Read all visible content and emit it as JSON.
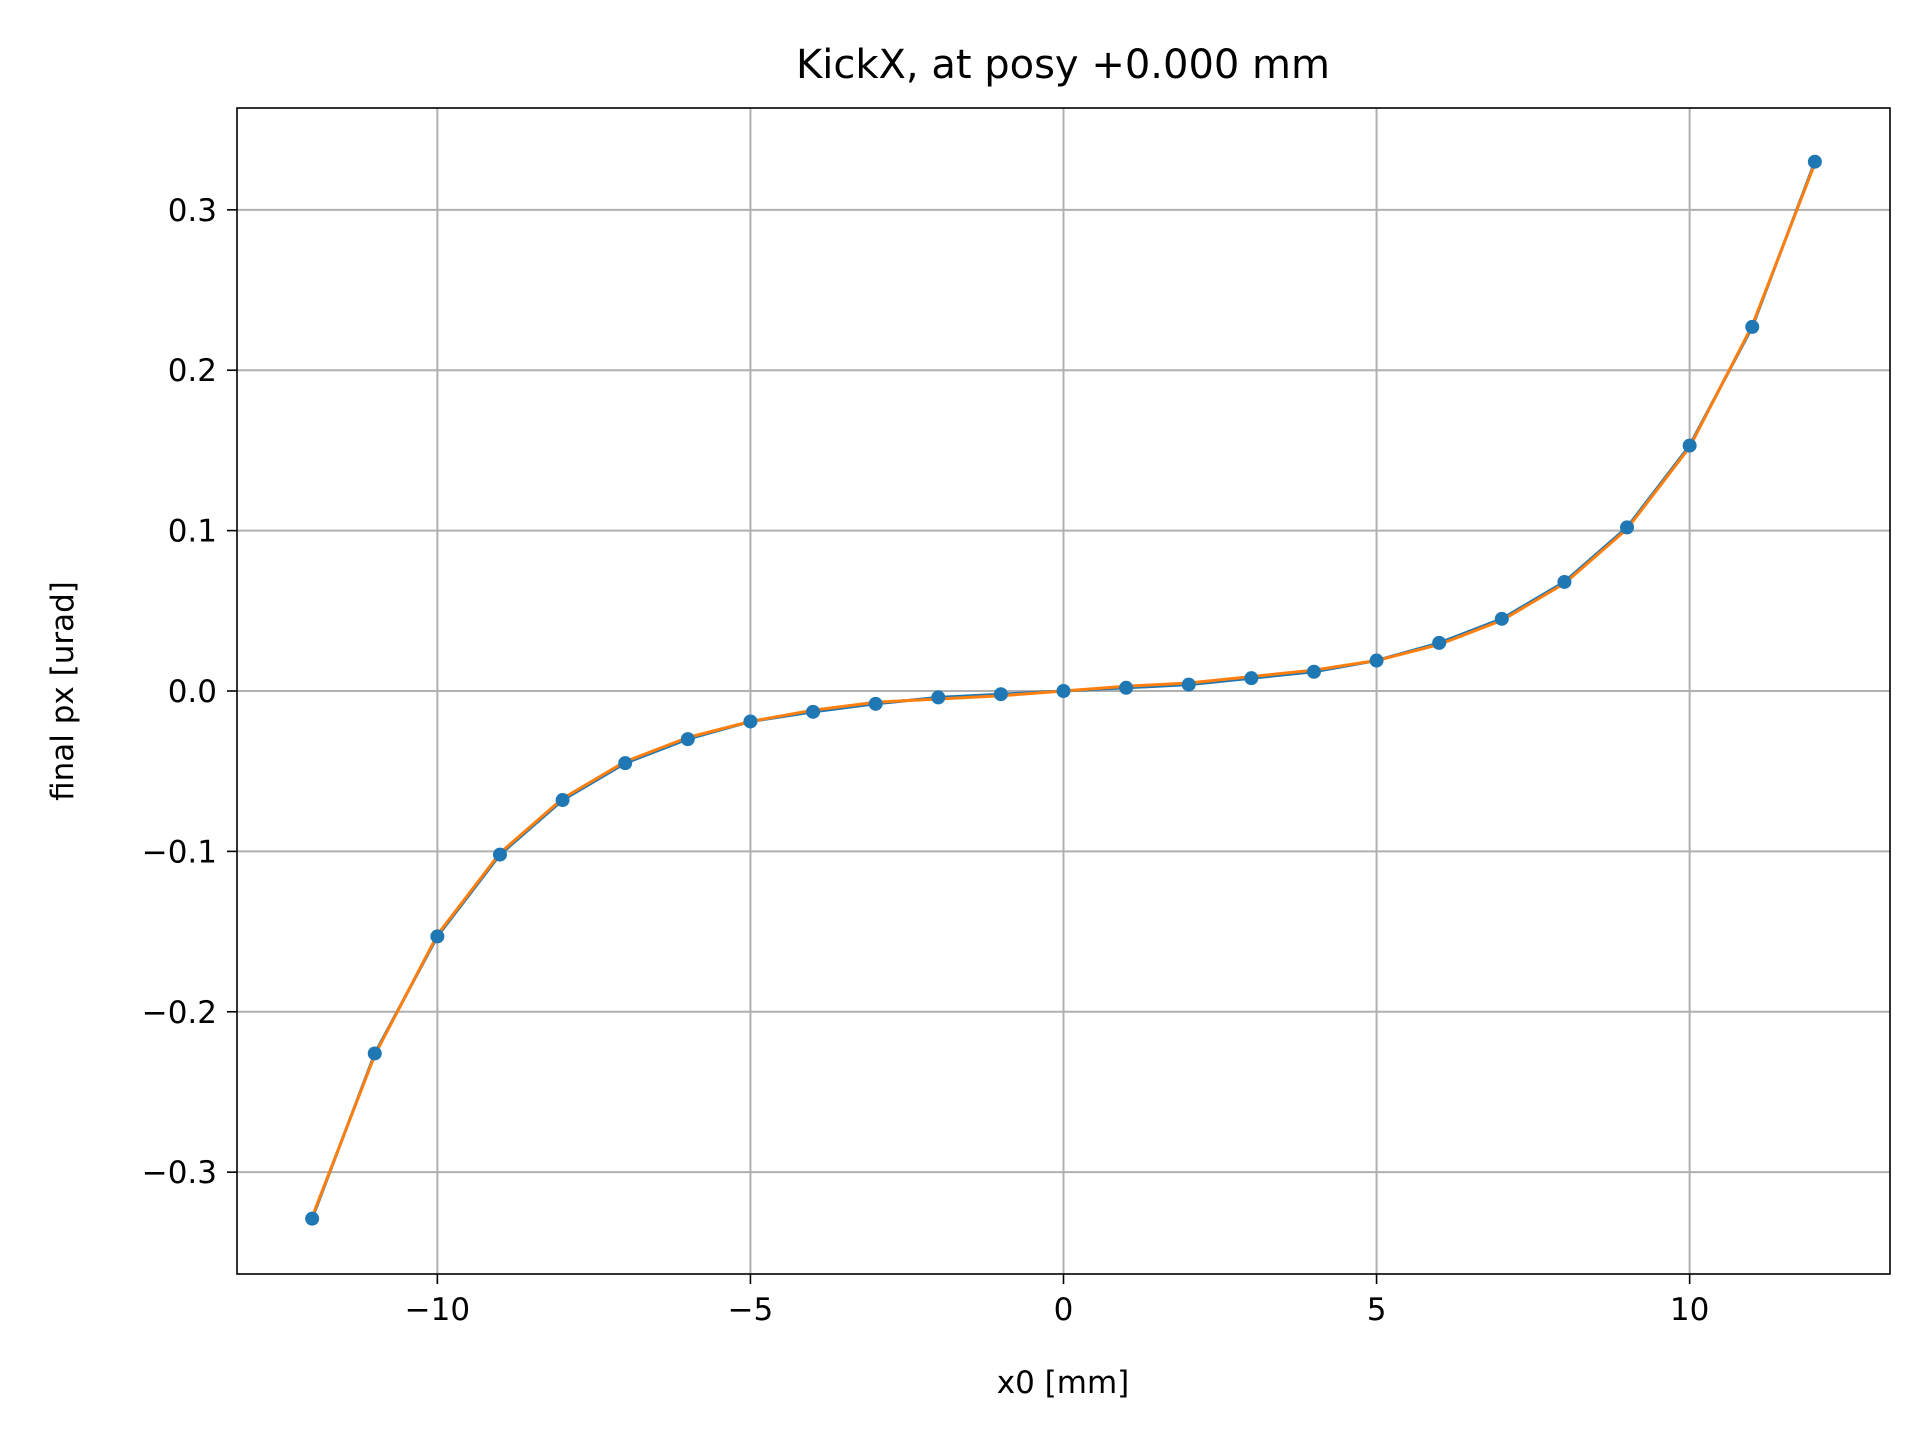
{
  "chart_data": {
    "type": "line",
    "title": "KickX, at posy +0.000 mm",
    "xlabel": "x0 [mm]",
    "ylabel": "final px [urad]",
    "xlim": [
      -13.2,
      13.2
    ],
    "ylim": [
      -0.3635,
      0.3635
    ],
    "xticks": [
      -10,
      -5,
      0,
      5,
      10
    ],
    "xtick_labels": [
      "−10",
      "−5",
      "0",
      "5",
      "10"
    ],
    "yticks": [
      -0.3,
      -0.2,
      -0.1,
      0.0,
      0.1,
      0.2,
      0.3
    ],
    "ytick_labels": [
      "−0.3",
      "−0.2",
      "−0.1",
      "0.0",
      "0.1",
      "0.2",
      "0.3"
    ],
    "grid": true,
    "x": [
      -12,
      -11,
      -10,
      -9,
      -8,
      -7,
      -6,
      -5,
      -4,
      -3,
      -2,
      -1,
      0,
      1,
      2,
      3,
      4,
      5,
      6,
      7,
      8,
      9,
      10,
      11,
      12
    ],
    "series": [
      {
        "color": "#1f77b4",
        "marker": "circle",
        "values": [
          -0.329,
          -0.226,
          -0.153,
          -0.102,
          -0.068,
          -0.045,
          -0.03,
          -0.019,
          -0.013,
          -0.008,
          -0.004,
          -0.002,
          0.0,
          0.002,
          0.004,
          0.008,
          0.012,
          0.019,
          0.03,
          0.045,
          0.068,
          0.102,
          0.153,
          0.227,
          0.33
        ]
      },
      {
        "color": "#ff7f0e",
        "marker": "none",
        "values": [
          -0.328,
          -0.227,
          -0.152,
          -0.101,
          -0.067,
          -0.044,
          -0.029,
          -0.019,
          -0.012,
          -0.007,
          -0.005,
          -0.003,
          0.0,
          0.003,
          0.005,
          0.009,
          0.013,
          0.019,
          0.029,
          0.044,
          0.067,
          0.101,
          0.152,
          0.228,
          0.329
        ]
      }
    ]
  }
}
